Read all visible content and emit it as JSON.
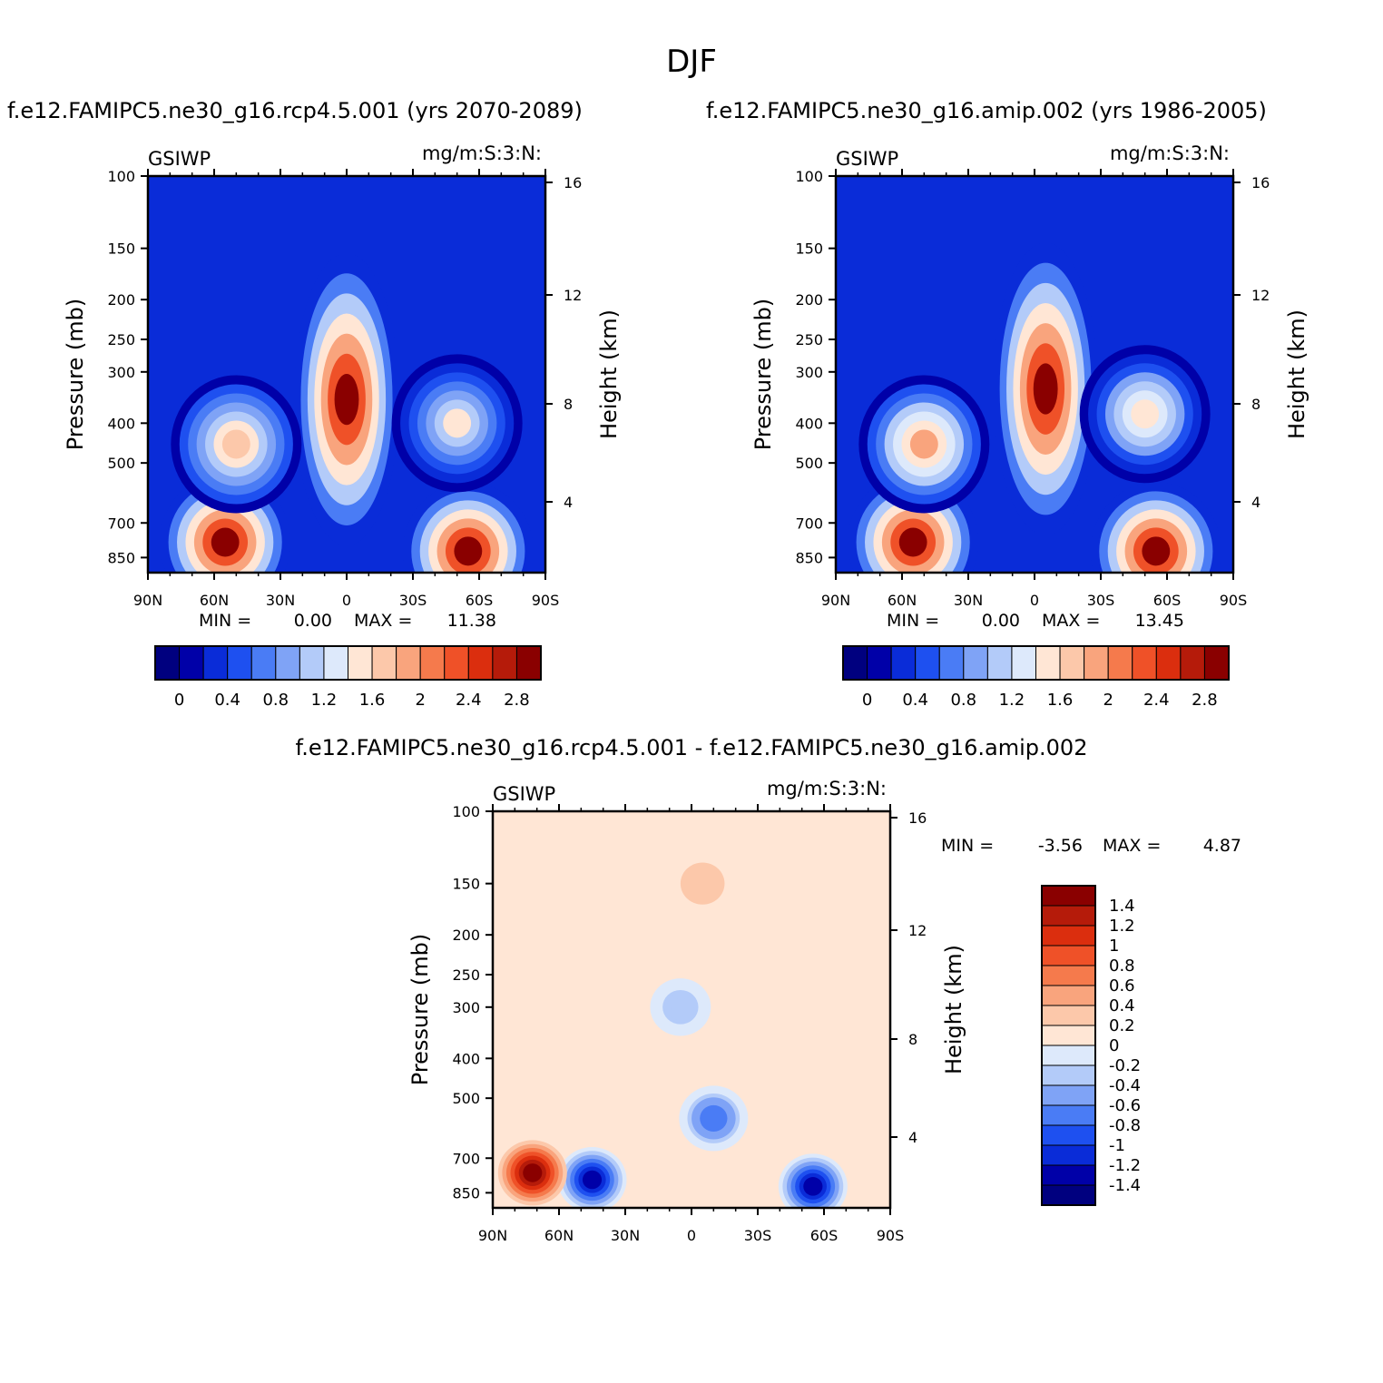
{
  "title": "DJF",
  "panel_titles": {
    "left": "f.e12.FAMIPC5.ne30_g16.rcp4.5.001 (yrs 2070-2089)",
    "right": "f.e12.FAMIPC5.ne30_g16.amip.002 (yrs 1986-2005)",
    "diff": "f.e12.FAMIPC5.ne30_g16.rcp4.5.001 - f.e12.FAMIPC5.ne30_g16.amip.002"
  },
  "chart_data": [
    {
      "id": "left",
      "type": "heatmap",
      "variable": "GSIWP",
      "units": "mg/m:S:3:N:",
      "xlabel": "",
      "ylabel": "Pressure (mb)",
      "ylabel_right": "Height (km)",
      "x_ticks": [
        "90N",
        "60N",
        "30N",
        "0",
        "30S",
        "60S",
        "90S"
      ],
      "y_ticks": [
        100,
        150,
        200,
        250,
        300,
        400,
        500,
        700,
        850
      ],
      "y_right_ticks": [
        16,
        12,
        8,
        4
      ],
      "stats": {
        "min_label": "MIN =",
        "min": "0.00",
        "max_label": "MAX =",
        "max": "11.38"
      },
      "colorbar_levels": [
        "0",
        "0.4",
        "0.8",
        "1.2",
        "1.6",
        "2",
        "2.4",
        "2.8"
      ],
      "features": [
        {
          "lat": 0,
          "p": 350,
          "value": 3.0
        },
        {
          "lat": 55,
          "p": 780,
          "value": 3.0
        },
        {
          "lat": -55,
          "p": 820,
          "value": 3.0
        },
        {
          "lat": 50,
          "p": 450,
          "value": 1.8
        },
        {
          "lat": -50,
          "p": 400,
          "value": 1.5
        }
      ]
    },
    {
      "id": "right",
      "type": "heatmap",
      "variable": "GSIWP",
      "units": "mg/m:S:3:N:",
      "xlabel": "",
      "ylabel": "Pressure (mb)",
      "ylabel_right": "Height (km)",
      "x_ticks": [
        "90N",
        "60N",
        "30N",
        "0",
        "30S",
        "60S",
        "90S"
      ],
      "y_ticks": [
        100,
        150,
        200,
        250,
        300,
        400,
        500,
        700,
        850
      ],
      "y_right_ticks": [
        16,
        12,
        8,
        4
      ],
      "stats": {
        "min_label": "MIN =",
        "min": "0.00",
        "max_label": "MAX =",
        "max": "13.45"
      },
      "colorbar_levels": [
        "0",
        "0.4",
        "0.8",
        "1.2",
        "1.6",
        "2",
        "2.4",
        "2.8"
      ],
      "features": [
        {
          "lat": -5,
          "p": 330,
          "value": 3.0
        },
        {
          "lat": 55,
          "p": 780,
          "value": 3.0
        },
        {
          "lat": -55,
          "p": 820,
          "value": 3.0
        },
        {
          "lat": 50,
          "p": 450,
          "value": 2.0
        },
        {
          "lat": -50,
          "p": 380,
          "value": 1.6
        }
      ]
    },
    {
      "id": "diff",
      "type": "heatmap",
      "variable": "GSIWP",
      "units": "mg/m:S:3:N:",
      "xlabel": "",
      "ylabel": "Pressure (mb)",
      "ylabel_right": "Height (km)",
      "x_ticks": [
        "90N",
        "60N",
        "30N",
        "0",
        "30S",
        "60S",
        "90S"
      ],
      "y_ticks": [
        100,
        150,
        200,
        250,
        300,
        400,
        500,
        700,
        850
      ],
      "y_right_ticks": [
        16,
        12,
        8,
        4
      ],
      "stats": {
        "min_label": "MIN =",
        "min": "-3.56",
        "max_label": "MAX =",
        "max": "4.87"
      },
      "colorbar_levels": [
        "1.4",
        "1.2",
        "1",
        "0.8",
        "0.6",
        "0.4",
        "0.2",
        "0",
        "-0.2",
        "-0.4",
        "-0.6",
        "-0.8",
        "-1",
        "-1.2",
        "-1.4"
      ],
      "features": [
        {
          "lat": 45,
          "p": 790,
          "value": -1.4
        },
        {
          "lat": -55,
          "p": 820,
          "value": -1.4
        },
        {
          "lat": 72,
          "p": 760,
          "value": 1.4
        },
        {
          "lat": -10,
          "p": 560,
          "value": -0.9
        },
        {
          "lat": 5,
          "p": 300,
          "value": -0.5
        },
        {
          "lat": -5,
          "p": 150,
          "value": 0.2
        }
      ]
    }
  ],
  "colors": {
    "blue_red_18": [
      "#00007f",
      "#0000a8",
      "#0a2cd8",
      "#1e50f0",
      "#4a7cf5",
      "#7fa3f6",
      "#b3cbf9",
      "#dde9fb",
      "#ffe6d5",
      "#fcc8aa",
      "#f9a47d",
      "#f57a4c",
      "#ef5128",
      "#db2e0e",
      "#b51b0a",
      "#8a0000"
    ],
    "background_field": "#0a2cd8",
    "diff_background": "#ffe6d5"
  }
}
